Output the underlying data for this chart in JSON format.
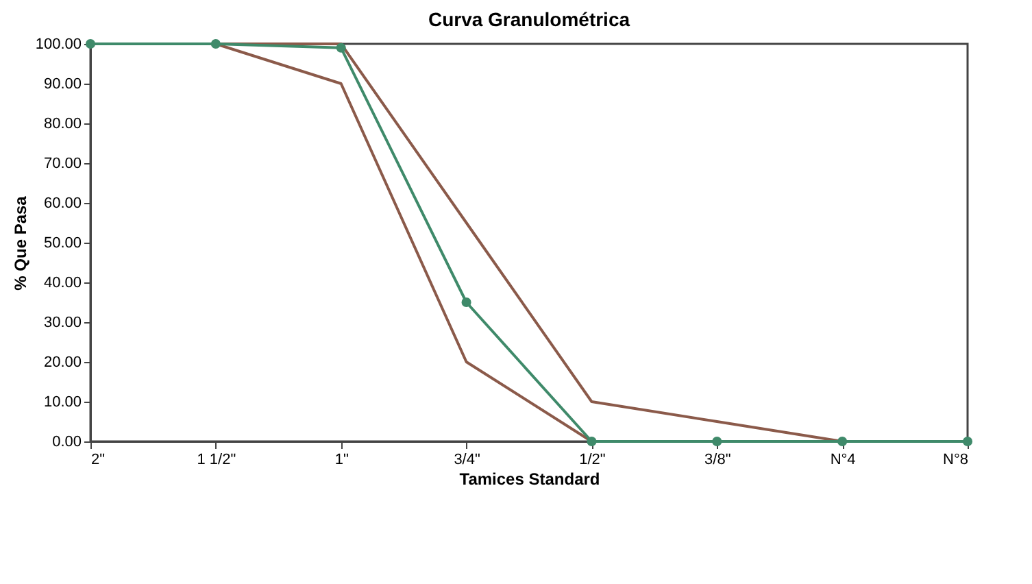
{
  "chart_data": {
    "type": "line",
    "title": "Curva Granulométrica",
    "xlabel": "Tamices Standard",
    "ylabel": "% Que Pasa",
    "categories": [
      "2\"",
      "1 1/2\"",
      "1\"",
      "3/4\"",
      "1/2\"",
      "3/8\"",
      "N°4",
      "N°8"
    ],
    "series": [
      {
        "color": "#8b5a4a",
        "values": [
          100,
          100,
          100,
          55,
          10,
          5,
          0,
          0
        ],
        "marker": "none"
      },
      {
        "color": "#8b5a4a",
        "values": [
          100,
          100,
          90,
          20,
          0,
          0,
          0,
          0
        ],
        "marker": "none"
      },
      {
        "color": "#3f8a6a",
        "values": [
          100,
          100,
          99,
          35,
          0,
          0,
          0,
          0
        ],
        "marker": "circle"
      }
    ],
    "ylim": [
      0,
      100
    ],
    "yticks": [
      {
        "value": 0,
        "label": "0.00"
      },
      {
        "value": 10,
        "label": "10.00"
      },
      {
        "value": 20,
        "label": "20.00"
      },
      {
        "value": 30,
        "label": "30.00"
      },
      {
        "value": 40,
        "label": "40.00"
      },
      {
        "value": 50,
        "label": "50.00"
      },
      {
        "value": 60,
        "label": "60.00"
      },
      {
        "value": 70,
        "label": "70.00"
      },
      {
        "value": 80,
        "label": "80.00"
      },
      {
        "value": 90,
        "label": "90.00"
      },
      {
        "value": 100,
        "label": "100.00"
      }
    ],
    "grid": false,
    "legend": false,
    "line_style": "solid"
  }
}
